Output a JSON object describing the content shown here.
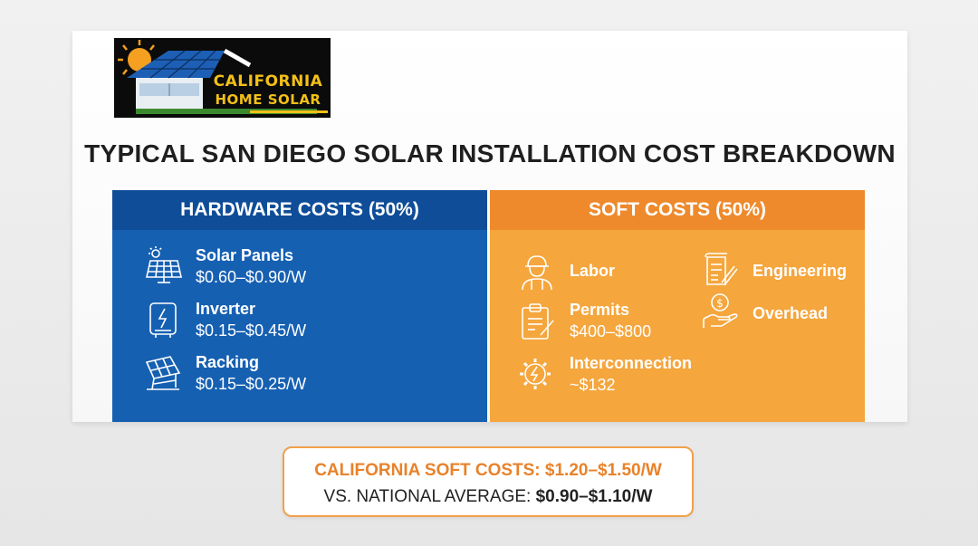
{
  "logo": {
    "line1": "CALIFORNIA",
    "line2": "HOME SOLAR"
  },
  "title": "TYPICAL SAN DIEGO SOLAR INSTALLATION COST BREAKDOWN",
  "hardware": {
    "heading": "HARDWARE COSTS (50%)",
    "color": "#1660b2",
    "items": [
      {
        "label": "Solar Panels",
        "value": "$0.60–$0.90/W",
        "icon": "solar-panel-icon"
      },
      {
        "label": "Inverter",
        "value": "$0.15–$0.45/W",
        "icon": "inverter-icon"
      },
      {
        "label": "Racking",
        "value": "$0.15–$0.25/W",
        "icon": "racking-icon"
      }
    ]
  },
  "soft": {
    "heading": "SOFT COSTS (50%)",
    "color": "#f5a63d",
    "items": [
      {
        "label": "Labor",
        "value": "",
        "icon": "worker-icon"
      },
      {
        "label": "Engineering",
        "value": "",
        "icon": "engineering-document-icon"
      },
      {
        "label": "Permits",
        "value": "$400–$800",
        "icon": "clipboard-icon"
      },
      {
        "label": "Overhead",
        "value": "",
        "icon": "money-hand-icon"
      },
      {
        "label": "Interconnection",
        "value": "~$132",
        "icon": "gear-bolt-icon"
      }
    ]
  },
  "callout": {
    "line1": "CALIFORNIA SOFT COSTS: $1.20–$1.50/W",
    "line2_prefix": "VS. NATIONAL AVERAGE:",
    "line2_value": "$0.90–$1.10/W",
    "accent": "#e8822a"
  }
}
